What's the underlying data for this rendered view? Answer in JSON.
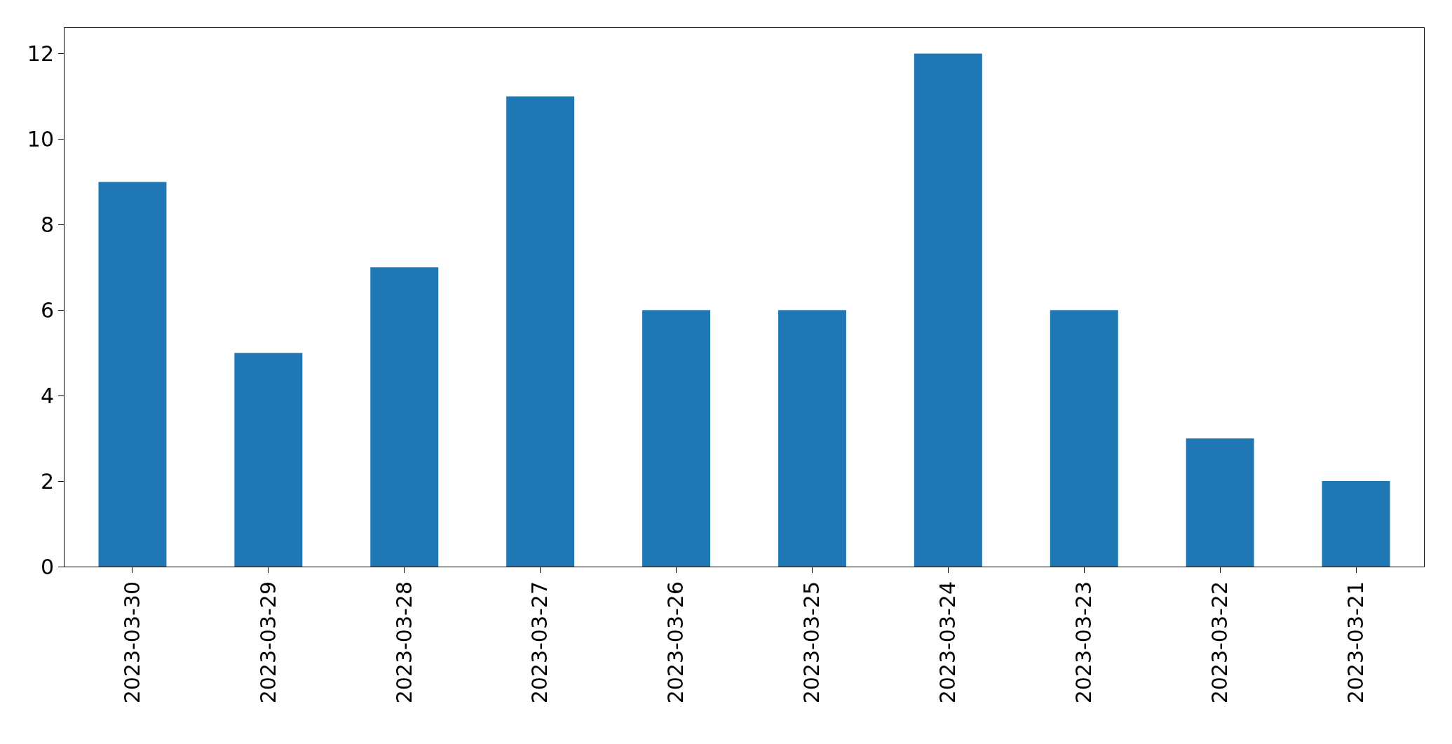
{
  "chart_data": {
    "type": "bar",
    "categories": [
      "2023-03-30",
      "2023-03-29",
      "2023-03-28",
      "2023-03-27",
      "2023-03-26",
      "2023-03-25",
      "2023-03-24",
      "2023-03-23",
      "2023-03-22",
      "2023-03-21"
    ],
    "values": [
      9,
      5,
      7,
      11,
      6,
      6,
      12,
      6,
      3,
      2
    ],
    "color": "#1f77b4",
    "ylim": [
      0,
      12.6
    ],
    "yticks": [
      0,
      2,
      4,
      6,
      8,
      10,
      12
    ]
  }
}
